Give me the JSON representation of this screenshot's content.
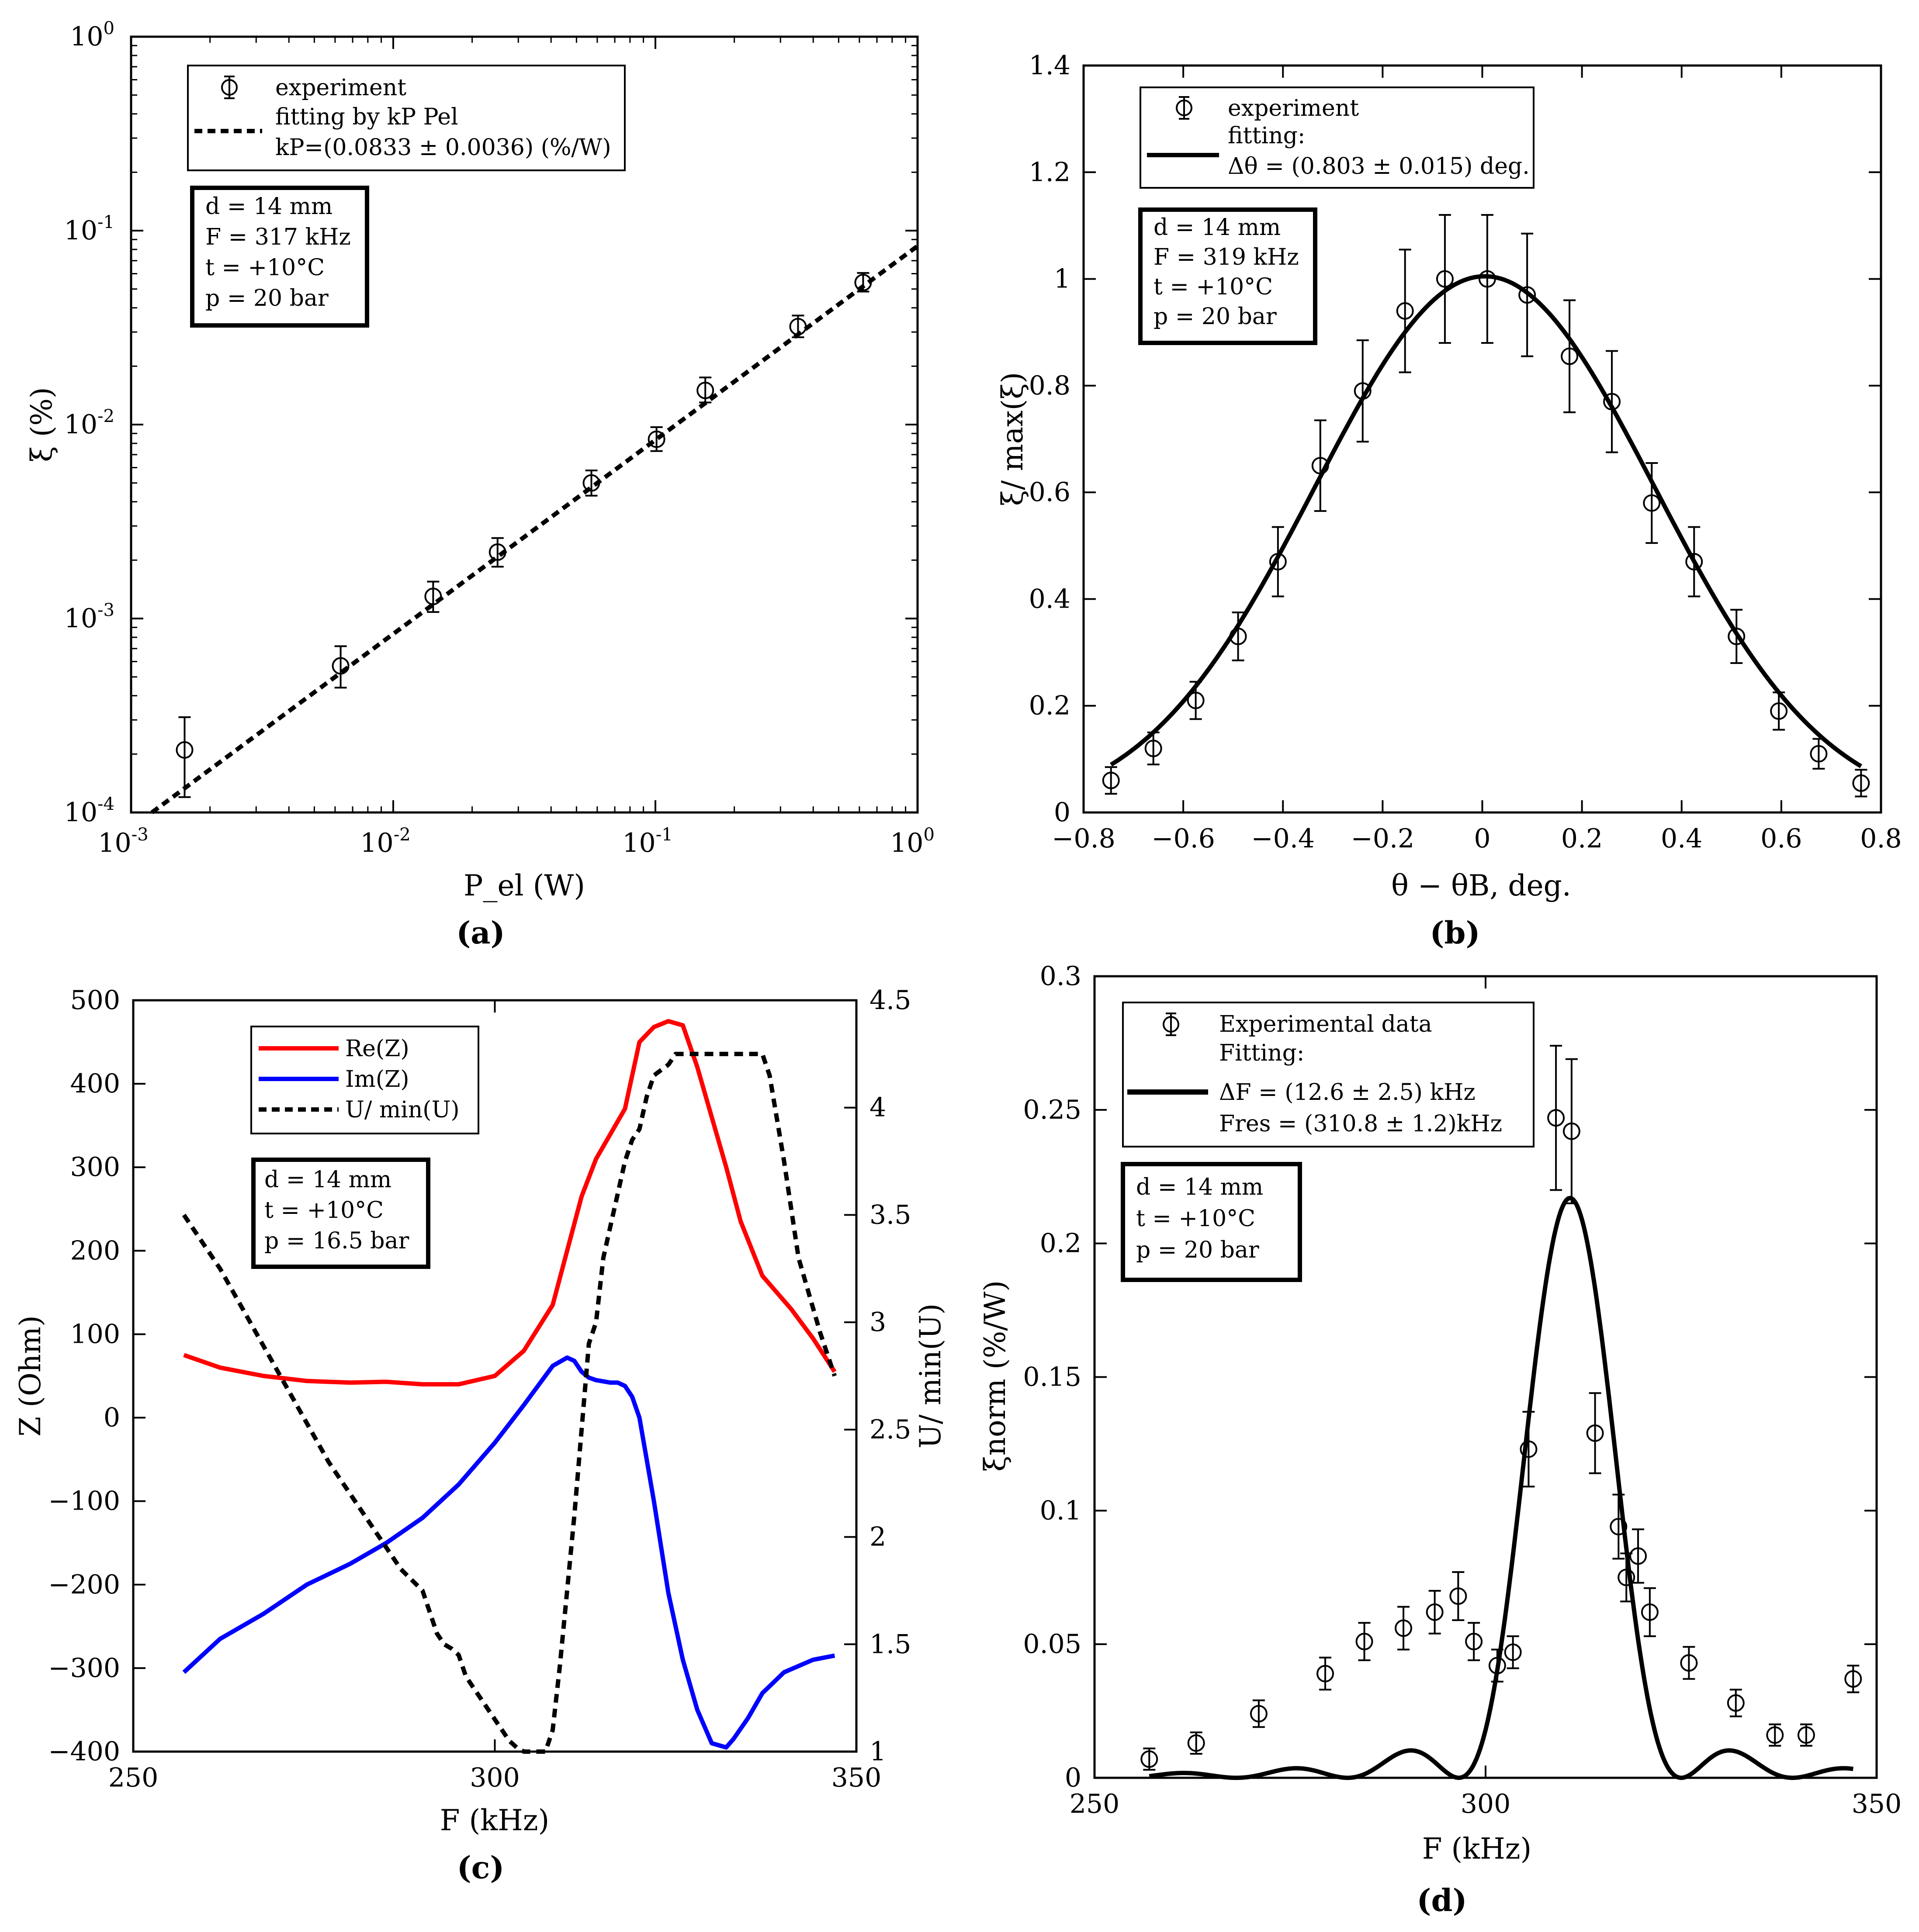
{
  "chart_data": [
    {
      "id": "a",
      "type": "scatter",
      "xscale": "log",
      "yscale": "log",
      "xlim": [
        0.001,
        1
      ],
      "ylim": [
        0.0001,
        1
      ],
      "x_ticks": [
        0.001,
        0.01,
        0.1,
        1
      ],
      "x_tick_labels": [
        {
          "base": "10",
          "exp": "-3"
        },
        {
          "base": "10",
          "exp": "-2"
        },
        {
          "base": "10",
          "exp": "-1"
        },
        {
          "base": "10",
          "exp": "0"
        }
      ],
      "y_ticks": [
        0.0001,
        0.001,
        0.01,
        0.1,
        1
      ],
      "y_tick_labels": [
        {
          "base": "10",
          "exp": "-4"
        },
        {
          "base": "10",
          "exp": "-3"
        },
        {
          "base": "10",
          "exp": "-2"
        },
        {
          "base": "10",
          "exp": "-1"
        },
        {
          "base": "10",
          "exp": "0"
        }
      ],
      "xlabel": "P_el (W)",
      "ylabel": "ξ (%)",
      "caption": "(a)",
      "series": [
        {
          "name": "experiment",
          "kind": "errorbar",
          "x": [
            0.0016,
            0.0063,
            0.0142,
            0.025,
            0.057,
            0.101,
            0.155,
            0.35,
            0.62
          ],
          "y": [
            0.00021,
            0.00057,
            0.0013,
            0.0022,
            0.005,
            0.0084,
            0.015,
            0.032,
            0.054
          ],
          "err_low": [
            9e-05,
            0.00013,
            0.00022,
            0.00035,
            0.0007,
            0.0011,
            0.002,
            0.0038,
            0.0055
          ],
          "err_high": [
            0.0001,
            0.00015,
            0.00025,
            0.0004,
            0.0008,
            0.0013,
            0.0025,
            0.0045,
            0.0065
          ]
        },
        {
          "name": "fitting by k_P P_el",
          "kind": "fit-dashed",
          "formula": "y = 0.0833 * x"
        }
      ],
      "legend": [
        "experiment",
        "fitting by kP Pel",
        "kP=(0.0833 ± 0.0036) (%/W)"
      ],
      "annotation": [
        "d = 14 mm",
        "F = 317 kHz",
        "t = +10°C",
        "p = 20 bar"
      ]
    },
    {
      "id": "b",
      "type": "scatter",
      "xlim": [
        -0.8,
        0.8
      ],
      "ylim": [
        0,
        1.4
      ],
      "x_ticks": [
        -0.8,
        -0.6,
        -0.4,
        -0.2,
        0,
        0.2,
        0.4,
        0.6,
        0.8
      ],
      "x_tick_labels": [
        "−0.8",
        "−0.6",
        "−0.4",
        "−0.2",
        "0",
        "0.2",
        "0.4",
        "0.6",
        "0.8"
      ],
      "y_ticks": [
        0,
        0.2,
        0.4,
        0.6,
        0.8,
        1,
        1.2,
        1.4
      ],
      "y_tick_labels": [
        "0",
        "0.2",
        "0.4",
        "0.6",
        "0.8",
        "1",
        "1.2",
        "1.4"
      ],
      "xlabel": "θ − θB, deg.",
      "ylabel": "ξ/ max(ξ)",
      "caption": "(b)",
      "series": [
        {
          "name": "experiment",
          "kind": "errorbar",
          "x": [
            -0.745,
            -0.66,
            -0.575,
            -0.49,
            -0.41,
            -0.325,
            -0.24,
            -0.155,
            -0.075,
            0.01,
            0.09,
            0.175,
            0.26,
            0.34,
            0.425,
            0.51,
            0.595,
            0.675,
            0.76
          ],
          "y": [
            0.06,
            0.12,
            0.21,
            0.33,
            0.47,
            0.65,
            0.79,
            0.94,
            1.0,
            1.0,
            0.97,
            0.855,
            0.77,
            0.58,
            0.47,
            0.33,
            0.19,
            0.11,
            0.055
          ],
          "err": [
            0.025,
            0.03,
            0.035,
            0.045,
            0.065,
            0.085,
            0.095,
            0.115,
            0.12,
            0.12,
            0.115,
            0.105,
            0.095,
            0.075,
            0.065,
            0.05,
            0.035,
            0.028,
            0.025
          ]
        },
        {
          "name": "fitting",
          "kind": "fit-solid",
          "formula": "Gaussian, FWHM 0.803 deg",
          "x": [
            -0.745,
            -0.6,
            -0.4,
            -0.2,
            0,
            0.2,
            0.4,
            0.6,
            0.76
          ],
          "y": [
            0.055,
            0.17,
            0.47,
            0.83,
            1.005,
            0.84,
            0.5,
            0.19,
            0.04
          ]
        }
      ],
      "legend": [
        "experiment",
        "fitting:",
        "Δθ = (0.803 ± 0.015) deg."
      ],
      "annotation": [
        "d = 14 mm",
        "F = 319 kHz",
        "t = +10°C",
        "p = 20 bar"
      ]
    },
    {
      "id": "c",
      "type": "line",
      "xlim": [
        250,
        350
      ],
      "ylim_left": [
        -400,
        500
      ],
      "ylim_right": [
        1,
        4.5
      ],
      "x_ticks": [
        250,
        300,
        350
      ],
      "x_tick_labels": [
        "250",
        "300",
        "350"
      ],
      "y_left_ticks": [
        -400,
        -300,
        -200,
        -100,
        0,
        100,
        200,
        300,
        400,
        500
      ],
      "y_left_tick_labels": [
        "−400",
        "−300",
        "−200",
        "−100",
        "0",
        "100",
        "200",
        "300",
        "400",
        "500"
      ],
      "y_right_ticks": [
        1,
        1.5,
        2,
        2.5,
        3,
        3.5,
        4,
        4.5
      ],
      "y_right_tick_labels": [
        "1",
        "1.5",
        "2",
        "2.5",
        "3",
        "3.5",
        "4",
        "4.5"
      ],
      "xlabel": "F (kHz)",
      "ylabel_left": "Z (Ohm)",
      "ylabel_right": "U/ min(U)",
      "caption": "(c)",
      "series": [
        {
          "name": "Re(Z)",
          "color": "#ff0000",
          "axis": "left",
          "x": [
            257,
            262,
            268,
            274,
            280,
            285,
            290,
            295,
            300,
            304,
            308,
            310,
            312,
            314,
            316,
            318,
            319,
            320,
            322,
            324,
            326,
            328,
            330,
            332,
            334,
            337,
            341,
            344,
            347
          ],
          "y": [
            75,
            60,
            50,
            44,
            42,
            43,
            40,
            40,
            50,
            80,
            135,
            200,
            265,
            310,
            340,
            370,
            410,
            450,
            468,
            475,
            470,
            420,
            360,
            300,
            235,
            170,
            130,
            95,
            55
          ]
        },
        {
          "name": "Im(Z)",
          "color": "#0000ff",
          "axis": "left",
          "x": [
            257,
            262,
            268,
            274,
            280,
            285,
            290,
            295,
            300,
            304,
            308,
            310,
            311,
            312,
            313,
            314,
            316,
            317,
            318,
            319,
            320,
            322,
            324,
            326,
            328,
            330,
            332,
            333,
            335,
            337,
            340,
            344,
            347
          ],
          "y": [
            -305,
            -265,
            -235,
            -200,
            -175,
            -150,
            -120,
            -80,
            -30,
            15,
            62,
            72,
            68,
            55,
            48,
            45,
            42,
            42,
            38,
            25,
            0,
            -100,
            -210,
            -290,
            -350,
            -390,
            -395,
            -385,
            -360,
            -330,
            -305,
            -290,
            -285
          ]
        },
        {
          "name": "U/ min(U)",
          "color": "#000000",
          "axis": "right",
          "dashed": true,
          "x": [
            257,
            262,
            267,
            272,
            277,
            282,
            287,
            290,
            292,
            293,
            294,
            295,
            296,
            298,
            300,
            302,
            303,
            304,
            305,
            306,
            307,
            308,
            309,
            310,
            311,
            312,
            313,
            314,
            315,
            316,
            317,
            318,
            319,
            320,
            321,
            322,
            324,
            325,
            326,
            330,
            334,
            337,
            338,
            340,
            342,
            345,
            347
          ],
          "y": [
            3.5,
            3.25,
            2.95,
            2.65,
            2.35,
            2.1,
            1.85,
            1.75,
            1.55,
            1.5,
            1.48,
            1.45,
            1.35,
            1.25,
            1.15,
            1.05,
            1.02,
            1.0,
            1.0,
            1.0,
            1.0,
            1.1,
            1.4,
            1.75,
            2.1,
            2.5,
            2.9,
            3.0,
            3.3,
            3.45,
            3.6,
            3.75,
            3.85,
            3.9,
            4.05,
            4.15,
            4.2,
            4.25,
            4.25,
            4.25,
            4.25,
            4.25,
            4.15,
            3.75,
            3.3,
            2.95,
            2.75
          ]
        }
      ],
      "legend": [
        "Re(Z)",
        "Im(Z)",
        "U/ min(U)"
      ],
      "annotation": [
        "d = 14 mm",
        "t = +10°C",
        "p = 16.5 bar"
      ]
    },
    {
      "id": "d",
      "type": "scatter",
      "xlim": [
        250,
        350
      ],
      "ylim": [
        0,
        0.3
      ],
      "x_ticks": [
        250,
        300,
        350
      ],
      "x_tick_labels": [
        "250",
        "300",
        "350"
      ],
      "y_ticks": [
        0,
        0.05,
        0.1,
        0.15,
        0.2,
        0.25,
        0.3
      ],
      "y_tick_labels": [
        "0",
        "0.05",
        "0.1",
        "0.15",
        "0.2",
        "0.25",
        "0.3"
      ],
      "xlabel": "F (kHz)",
      "ylabel": "ξnorm (%/W)",
      "caption": "(d)",
      "series": [
        {
          "name": "Experimental data",
          "kind": "errorbar",
          "x": [
            257,
            263,
            271,
            279.5,
            284.5,
            289.5,
            293.5,
            296.5,
            298.5,
            301.5,
            303.5,
            305.5,
            309,
            311,
            314,
            317,
            318,
            319.5,
            321,
            326,
            332,
            337,
            341,
            347
          ],
          "y": [
            0.007,
            0.013,
            0.024,
            0.039,
            0.051,
            0.056,
            0.062,
            0.068,
            0.051,
            0.042,
            0.047,
            0.123,
            0.247,
            0.242,
            0.129,
            0.094,
            0.075,
            0.083,
            0.062,
            0.043,
            0.028,
            0.016,
            0.016,
            0.037
          ],
          "err": [
            0.004,
            0.004,
            0.005,
            0.006,
            0.007,
            0.008,
            0.008,
            0.009,
            0.007,
            0.006,
            0.006,
            0.014,
            0.027,
            0.027,
            0.015,
            0.012,
            0.009,
            0.01,
            0.009,
            0.006,
            0.005,
            0.004,
            0.004,
            0.005
          ]
        },
        {
          "name": "Fitting",
          "kind": "fit-solid",
          "formula": "sinc² resonance, FWHM 12.6 kHz, center 310.8 kHz, peak 0.217"
        }
      ],
      "legend": [
        "Experimental data",
        "Fitting:",
        "ΔF = (12.6 ± 2.5) kHz",
        "Fres = (310.8 ± 1.2)kHz"
      ],
      "annotation": [
        "d = 14 mm",
        "t = +10°C",
        "p = 20 bar"
      ]
    }
  ]
}
